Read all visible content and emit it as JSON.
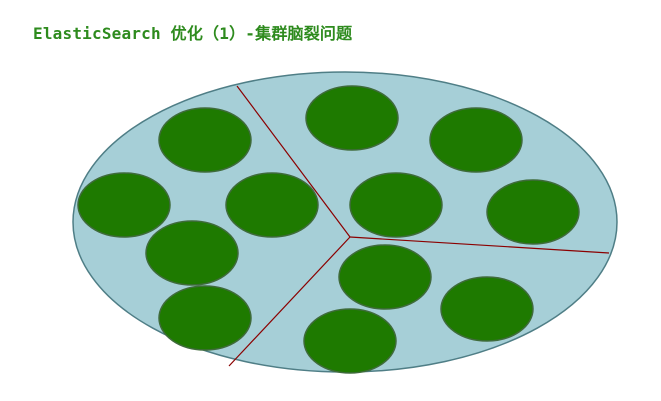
{
  "title": "ElasticSearch 优化（1）-集群脑裂问题",
  "colors": {
    "title": "#2e8b1e",
    "cluster_fill": "#a6cfd7",
    "cluster_stroke": "#4f7e86",
    "node_fill": "#1e7a00",
    "node_stroke": "#3f6b3b",
    "partition_line": "#8b0000"
  },
  "diagram": {
    "cluster": {
      "name": "cluster-ellipse"
    },
    "partitions": [
      {
        "name": "left-partition"
      },
      {
        "name": "top-right-partition"
      },
      {
        "name": "bottom-right-partition"
      }
    ],
    "nodes": [
      {
        "partition": "left-partition"
      },
      {
        "partition": "left-partition"
      },
      {
        "partition": "left-partition"
      },
      {
        "partition": "left-partition"
      },
      {
        "partition": "left-partition"
      },
      {
        "partition": "top-right-partition"
      },
      {
        "partition": "top-right-partition"
      },
      {
        "partition": "top-right-partition"
      },
      {
        "partition": "top-right-partition"
      },
      {
        "partition": "bottom-right-partition"
      },
      {
        "partition": "bottom-right-partition"
      },
      {
        "partition": "bottom-right-partition"
      }
    ]
  }
}
